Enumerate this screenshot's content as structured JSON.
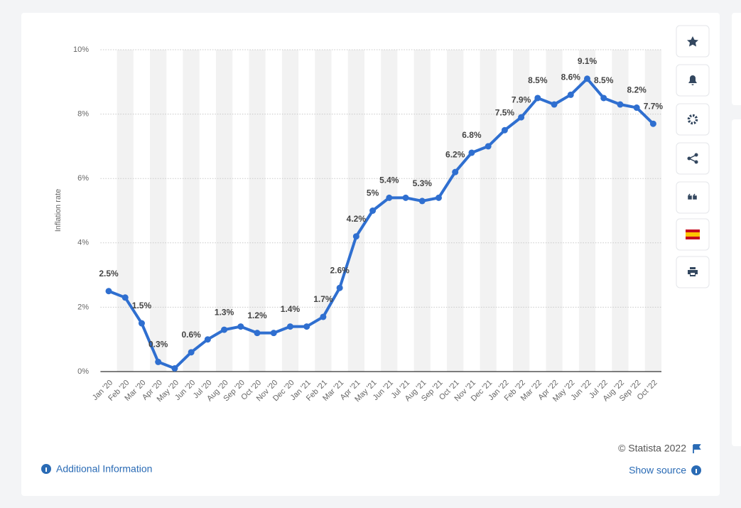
{
  "chart_data": {
    "type": "line",
    "y_label": "Inflation rate",
    "categories": [
      "Jan '20",
      "Feb '20",
      "Mar '20",
      "Apr '20",
      "May '20",
      "Jun '20",
      "Jul '20",
      "Aug '20",
      "Sep '20",
      "Oct '20",
      "Nov '20",
      "Dec '20",
      "Jan '21",
      "Feb '21",
      "Mar '21",
      "Apr '21",
      "May '21",
      "Jun '21",
      "Jul '21",
      "Aug '21",
      "Sep '21",
      "Oct '21",
      "Nov '21",
      "Dec '21",
      "Jan '22",
      "Feb '22",
      "Mar '22",
      "Apr '22",
      "May '22",
      "Jun '22",
      "Jul '22",
      "Aug '22",
      "Sep '22",
      "Oct '22"
    ],
    "values": [
      2.5,
      2.3,
      1.5,
      0.3,
      0.1,
      0.6,
      1.0,
      1.3,
      1.4,
      1.2,
      1.2,
      1.4,
      1.4,
      1.7,
      2.6,
      4.2,
      5.0,
      5.4,
      5.4,
      5.3,
      5.4,
      6.2,
      6.8,
      7.0,
      7.5,
      7.9,
      8.5,
      8.3,
      8.6,
      9.1,
      8.5,
      8.3,
      8.2,
      7.7
    ],
    "value_labels": [
      "2.5%",
      null,
      "1.5%",
      "0.3%",
      null,
      "0.6%",
      null,
      "1.3%",
      null,
      "1.2%",
      null,
      "1.4%",
      null,
      "1.7%",
      "2.6%",
      "4.2%",
      "5%",
      "5.4%",
      null,
      "5.3%",
      null,
      "6.2%",
      "6.8%",
      null,
      "7.5%",
      "7.9%",
      "8.5%",
      null,
      "8.6%",
      "9.1%",
      "8.5%",
      null,
      "8.2%",
      "7.7%"
    ],
    "color": "#2f6fd0",
    "ylim": [
      0,
      10
    ],
    "yticks": [
      {
        "value": 0,
        "label": "0%"
      },
      {
        "value": 2,
        "label": "2%"
      },
      {
        "value": 4,
        "label": "4%"
      },
      {
        "value": 6,
        "label": "6%"
      },
      {
        "value": 8,
        "label": "8%"
      },
      {
        "value": 10,
        "label": "10%"
      }
    ],
    "grid": true
  },
  "footer": {
    "copyright": "© Statista 2022",
    "show_source": "Show source",
    "additional_info": "Additional Information"
  }
}
